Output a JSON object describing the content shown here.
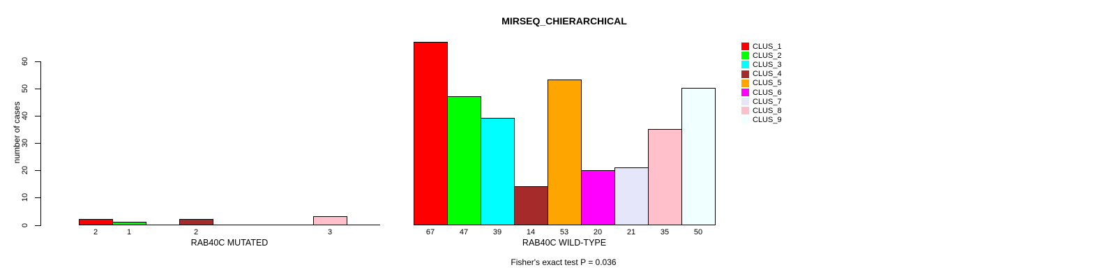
{
  "title": "MIRSEQ_CHIERARCHICAL",
  "y_axis": {
    "label": "number of cases",
    "ticks": [
      0,
      10,
      20,
      30,
      40,
      50,
      60
    ]
  },
  "footnote": "Fisher's exact test P = 0.036",
  "legend": {
    "items": [
      {
        "label": "CLUS_1",
        "color": "#FF0000"
      },
      {
        "label": "CLUS_2",
        "color": "#00FF00"
      },
      {
        "label": "CLUS_3",
        "color": "#00FFFF"
      },
      {
        "label": "CLUS_4",
        "color": "#A52A2A"
      },
      {
        "label": "CLUS_5",
        "color": "#FFA500"
      },
      {
        "label": "CLUS_6",
        "color": "#FF00FF"
      },
      {
        "label": "CLUS_7",
        "color": "#E6E6FA"
      },
      {
        "label": "CLUS_8",
        "color": "#FFC0CB"
      },
      {
        "label": "CLUS_9",
        "color": "#F0FFFF"
      }
    ]
  },
  "chart_data": {
    "type": "bar",
    "title": "MIRSEQ_CHIERARCHICAL",
    "ylabel": "number of cases",
    "ylim": [
      0,
      67
    ],
    "grid": false,
    "legend_position": "right",
    "categories": [
      "CLUS_1",
      "CLUS_2",
      "CLUS_3",
      "CLUS_4",
      "CLUS_5",
      "CLUS_6",
      "CLUS_7",
      "CLUS_8",
      "CLUS_9"
    ],
    "colors": [
      "#FF0000",
      "#00FF00",
      "#00FFFF",
      "#A52A2A",
      "#FFA500",
      "#FF00FF",
      "#E6E6FA",
      "#FFC0CB",
      "#F0FFFF"
    ],
    "panels": [
      {
        "xlabel": "RAB40C MUTATED",
        "values": [
          2,
          1,
          0,
          2,
          0,
          0,
          0,
          3,
          0
        ],
        "bar_labels": [
          "2",
          "1",
          "",
          "2",
          "",
          "",
          "",
          "3",
          ""
        ]
      },
      {
        "xlabel": "RAB40C WILD-TYPE",
        "values": [
          67,
          47,
          39,
          14,
          53,
          20,
          21,
          35,
          50
        ],
        "bar_labels": [
          "67",
          "47",
          "39",
          "14",
          "53",
          "20",
          "21",
          "35",
          "50"
        ]
      }
    ],
    "annotations": [
      "Fisher's exact test P = 0.036"
    ]
  }
}
